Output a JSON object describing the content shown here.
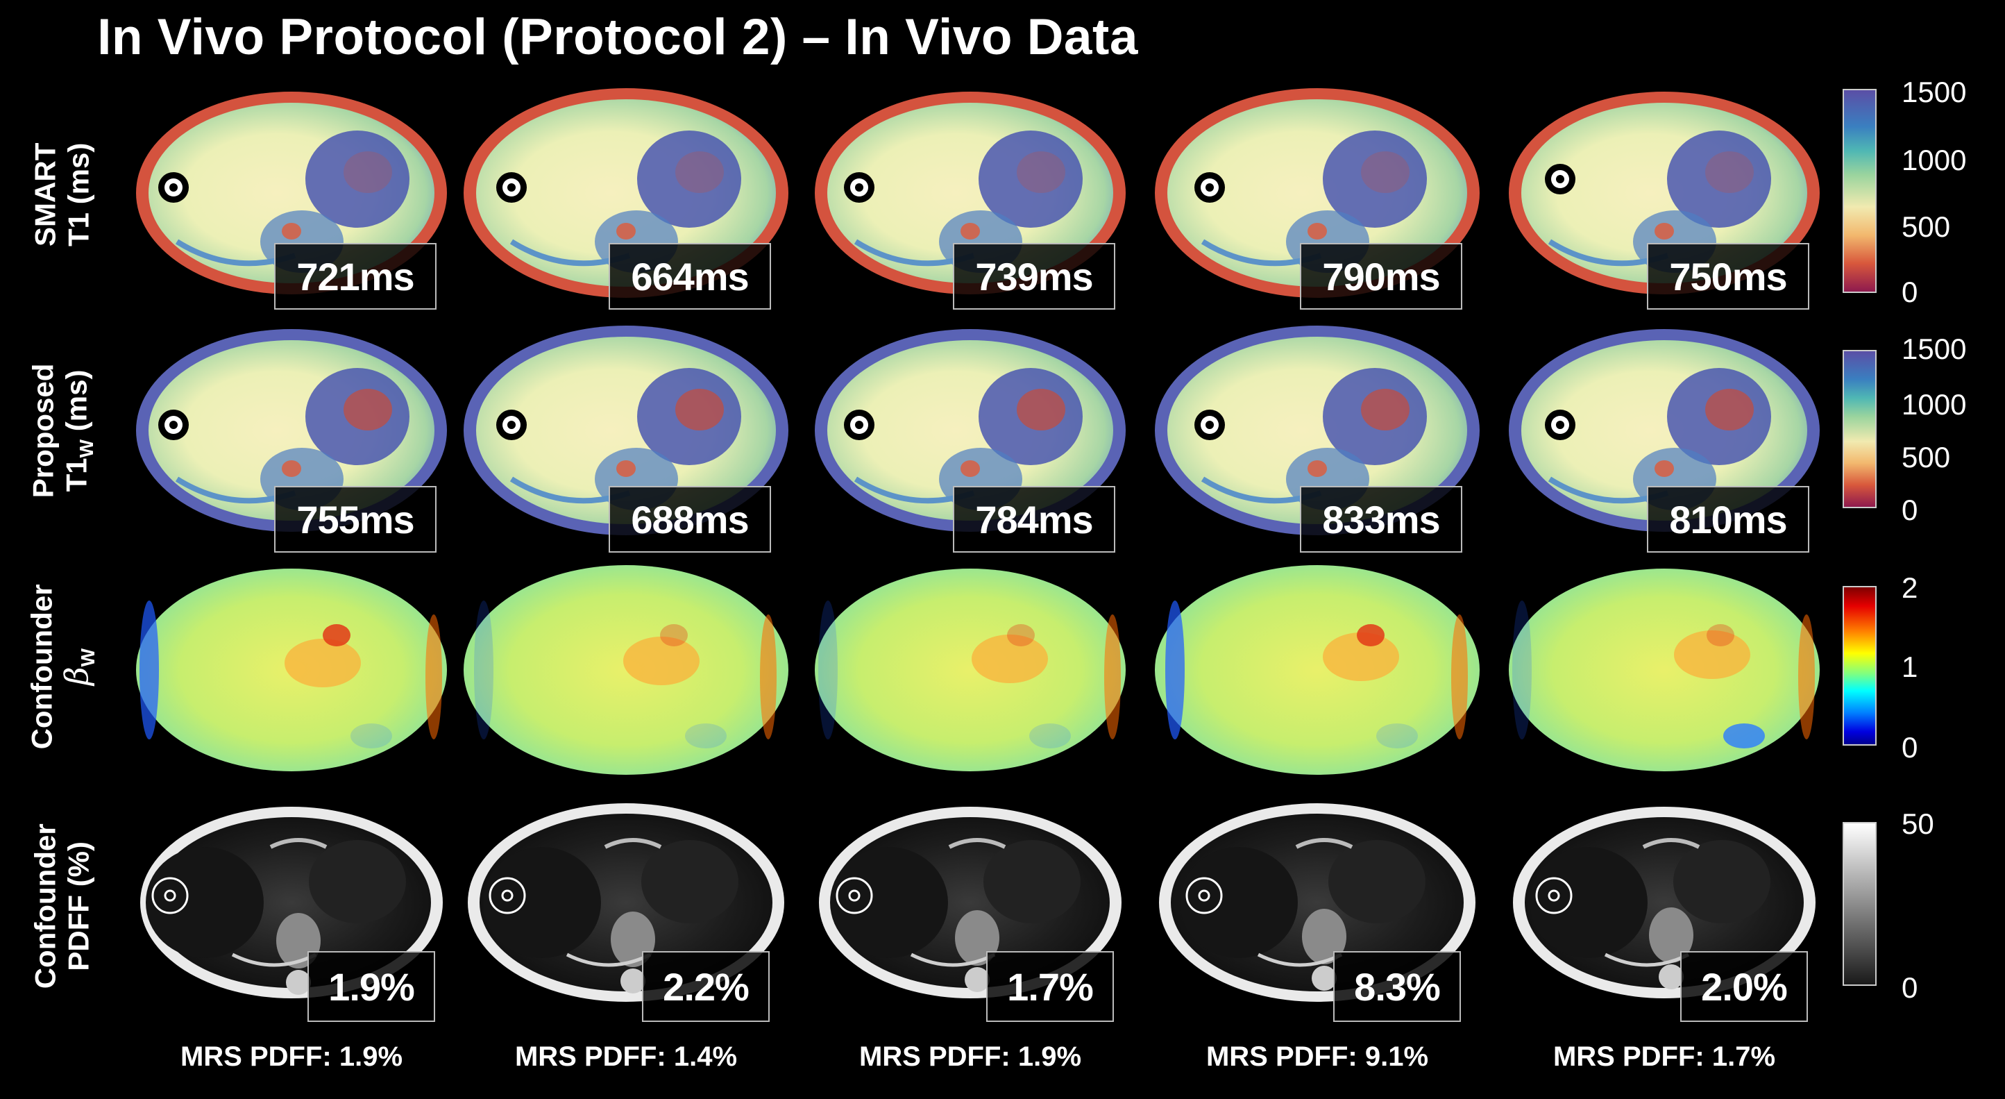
{
  "title": "In Vivo Protocol (Protocol 2) – In Vivo Data",
  "rows": [
    {
      "label_line1": "SMART",
      "label_line2": "T1 (ms)",
      "label_sub": "",
      "values": [
        "721ms",
        "664ms",
        "739ms",
        "790ms",
        "750ms"
      ],
      "colormap": "t1-rainbow",
      "colorbar_ticks": [
        "1500",
        "1000",
        "500",
        "0"
      ]
    },
    {
      "label_line1": "Proposed",
      "label_line2": "T1",
      "label_sub": "W",
      "label_suffix": " (ms)",
      "values": [
        "755ms",
        "688ms",
        "784ms",
        "833ms",
        "810ms"
      ],
      "colormap": "t1-rainbow",
      "colorbar_ticks": [
        "1500",
        "1000",
        "500",
        "0"
      ]
    },
    {
      "label_line1": "Confounder",
      "label_line2": "β",
      "label_sub": "W",
      "values": [],
      "colormap": "jet",
      "colorbar_ticks": [
        "2",
        "1",
        "0"
      ]
    },
    {
      "label_line1": "Confounder",
      "label_line2": "PDFF (%)",
      "label_sub": "",
      "values": [
        "1.9%",
        "2.2%",
        "1.7%",
        "8.3%",
        "2.0%"
      ],
      "colormap": "gray",
      "colorbar_ticks": [
        "50",
        "0"
      ]
    }
  ],
  "mrs_pdff": [
    "MRS PDFF: 1.9%",
    "MRS PDFF: 1.4%",
    "MRS PDFF: 1.9%",
    "MRS PDFF: 9.1%",
    "MRS PDFF: 1.7%"
  ],
  "colors": {
    "background": "#000000",
    "text": "#ffffff",
    "box_border": "#bbbbbb"
  }
}
